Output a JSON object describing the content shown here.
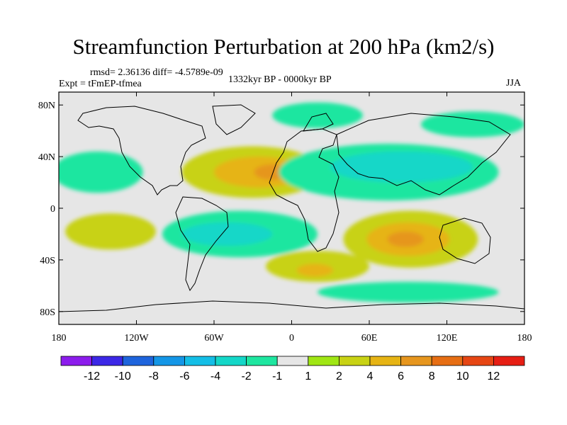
{
  "chart_data": {
    "type": "contour-map",
    "title": "Streamfunction Perturbation at 200 hPa (km2/s)",
    "stats_text": "rmsd= 2.36136 diff= -4.5789e-09",
    "experiment_text": "Expt = tFmEP-tfmea",
    "period_text": "1332kyr BP - 0000kyr BP",
    "season_text": "JJA",
    "lon_range": [
      -180,
      180
    ],
    "lat_range": [
      -90,
      90
    ],
    "x_ticks": [
      {
        "value": -180,
        "label": "180"
      },
      {
        "value": -120,
        "label": "120W"
      },
      {
        "value": -60,
        "label": "60W"
      },
      {
        "value": 0,
        "label": "0"
      },
      {
        "value": 60,
        "label": "60E"
      },
      {
        "value": 120,
        "label": "120E"
      },
      {
        "value": 180,
        "label": "180"
      }
    ],
    "y_ticks": [
      {
        "value": 80,
        "label": "80N"
      },
      {
        "value": 40,
        "label": "40N"
      },
      {
        "value": 0,
        "label": "0"
      },
      {
        "value": -40,
        "label": "40S"
      },
      {
        "value": -80,
        "label": "80S"
      }
    ],
    "colorbar": {
      "colors": [
        "#8c1cec",
        "#3c28e6",
        "#1e64dc",
        "#1496e6",
        "#14bee6",
        "#14d7c8",
        "#1ee6a0",
        "#e6e6e6",
        "#a0e614",
        "#c8d214",
        "#e6b414",
        "#e6961e",
        "#e66e14",
        "#e64614",
        "#e61e14"
      ],
      "labels": [
        {
          "index": 1,
          "text": "-12"
        },
        {
          "index": 2,
          "text": "-10"
        },
        {
          "index": 3,
          "text": "-8"
        },
        {
          "index": 4,
          "text": "-6"
        },
        {
          "index": 5,
          "text": "-4"
        },
        {
          "index": 6,
          "text": "-2"
        },
        {
          "index": 7,
          "text": "-1"
        },
        {
          "index": 8,
          "text": "1"
        },
        {
          "index": 9,
          "text": "2"
        },
        {
          "index": 10,
          "text": "4"
        },
        {
          "index": 11,
          "text": "6"
        },
        {
          "index": 12,
          "text": "8"
        },
        {
          "index": 13,
          "text": "10"
        },
        {
          "index": 14,
          "text": "12"
        }
      ]
    },
    "anomaly_regions": [
      {
        "name": "north-atlantic-high",
        "lon": -30,
        "lat": 28,
        "rx": 55,
        "ry": 20,
        "level": 2
      },
      {
        "name": "north-atlantic-high-inner",
        "lon": -25,
        "lat": 28,
        "rx": 35,
        "ry": 12,
        "level": 4
      },
      {
        "name": "north-atlantic-high-core",
        "lon": -15,
        "lat": 28,
        "rx": 14,
        "ry": 6,
        "level": 6
      },
      {
        "name": "south-indian-high",
        "lon": 92,
        "lat": -24,
        "rx": 52,
        "ry": 22,
        "level": 2
      },
      {
        "name": "south-indian-high-inner",
        "lon": 90,
        "lat": -24,
        "rx": 32,
        "ry": 13,
        "level": 4
      },
      {
        "name": "south-indian-high-core",
        "lon": 88,
        "lat": -24,
        "rx": 14,
        "ry": 6,
        "level": 6
      },
      {
        "name": "asia-low",
        "lon": 75,
        "lat": 28,
        "rx": 85,
        "ry": 22,
        "level": -2
      },
      {
        "name": "asia-low-inner",
        "lon": 85,
        "lat": 32,
        "rx": 55,
        "ry": 12,
        "level": -4
      },
      {
        "name": "pacific-low",
        "lon": -150,
        "lat": 28,
        "rx": 35,
        "ry": 16,
        "level": -2
      },
      {
        "name": "south-atlantic-low",
        "lon": -40,
        "lat": -20,
        "rx": 60,
        "ry": 18,
        "level": -2
      },
      {
        "name": "south-atlantic-low-inner",
        "lon": -50,
        "lat": -20,
        "rx": 35,
        "ry": 9,
        "level": -4
      },
      {
        "name": "south-pacific-high",
        "lon": -140,
        "lat": -18,
        "rx": 35,
        "ry": 14,
        "level": 2
      },
      {
        "name": "southern-ocean-high",
        "lon": 20,
        "lat": -45,
        "rx": 40,
        "ry": 12,
        "level": 2
      },
      {
        "name": "southern-ocean-high-core",
        "lon": 18,
        "lat": -48,
        "rx": 14,
        "ry": 5,
        "level": 4
      },
      {
        "name": "arctic-low",
        "lon": 20,
        "lat": 72,
        "rx": 35,
        "ry": 10,
        "level": -1
      },
      {
        "name": "siberia-low",
        "lon": 140,
        "lat": 65,
        "rx": 40,
        "ry": 10,
        "level": -1
      },
      {
        "name": "antarctic-low",
        "lon": 90,
        "lat": -65,
        "rx": 70,
        "ry": 8,
        "level": -1
      }
    ]
  }
}
